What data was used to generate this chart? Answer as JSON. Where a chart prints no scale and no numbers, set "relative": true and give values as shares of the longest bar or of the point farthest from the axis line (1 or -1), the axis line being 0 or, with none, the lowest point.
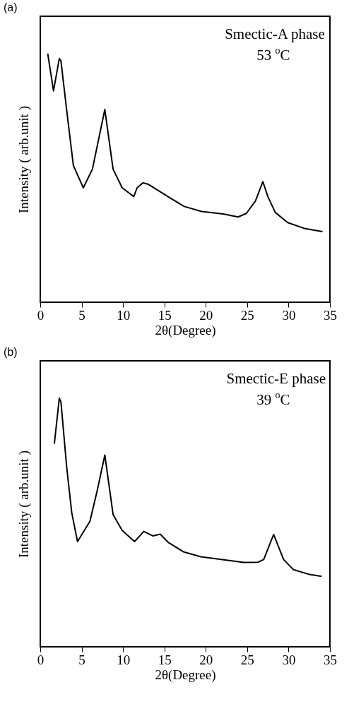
{
  "chart_data": [
    {
      "type": "line",
      "title": "(a)",
      "xlabel": "2θ(Degree)",
      "ylabel": "Intensity ( arb.unit )",
      "relative": true,
      "xlim": [
        0,
        35
      ],
      "xticks": [
        0,
        5,
        10,
        15,
        20,
        25,
        30,
        35
      ],
      "grid": false,
      "annotations": [
        "Smectic-A phase",
        "53 $^{o}$C"
      ],
      "series": [
        {
          "color": "#000000",
          "x": [
            0.9,
            1.6,
            2.3,
            2.5,
            3.2,
            4.0,
            5.2,
            6.3,
            7.8,
            8.8,
            9.9,
            11.3,
            11.7,
            12.4,
            13.0,
            15.9,
            17.4,
            19.5,
            22.1,
            23.9,
            24.9,
            26.0,
            26.9,
            27.5,
            28.4,
            29.9,
            31.9,
            34.1
          ],
          "values": [
            1.0,
            0.85,
            0.98,
            0.97,
            0.77,
            0.55,
            0.46,
            0.535,
            0.775,
            0.535,
            0.46,
            0.425,
            0.46,
            0.48,
            0.475,
            0.415,
            0.385,
            0.365,
            0.355,
            0.343,
            0.357,
            0.407,
            0.485,
            0.425,
            0.361,
            0.32,
            0.297,
            0.284
          ]
        }
      ]
    },
    {
      "type": "line",
      "title": "(b)",
      "xlabel": "2θ(Degree)",
      "ylabel": "Intensity ( arb.unit )",
      "relative": true,
      "xlim": [
        0,
        35
      ],
      "xticks": [
        0,
        5,
        10,
        15,
        20,
        25,
        30,
        35
      ],
      "grid": false,
      "annotations": [
        "Smectic-E phase",
        "39 $^{o}$C"
      ],
      "series": [
        {
          "color": "#000000",
          "x": [
            1.7,
            2.3,
            2.5,
            3.2,
            3.8,
            4.5,
            6.0,
            6.9,
            7.8,
            8.8,
            9.9,
            11.4,
            12.5,
            13.6,
            14.5,
            15.5,
            17.3,
            19.4,
            22.0,
            24.6,
            26.3,
            27.0,
            28.2,
            29.4,
            30.6,
            32.4,
            34.0
          ],
          "values": [
            0.816,
            1.0,
            0.984,
            0.72,
            0.54,
            0.423,
            0.505,
            0.631,
            0.771,
            0.532,
            0.468,
            0.423,
            0.464,
            0.446,
            0.453,
            0.419,
            0.382,
            0.362,
            0.351,
            0.339,
            0.34,
            0.351,
            0.452,
            0.351,
            0.31,
            0.292,
            0.283
          ]
        }
      ]
    }
  ]
}
